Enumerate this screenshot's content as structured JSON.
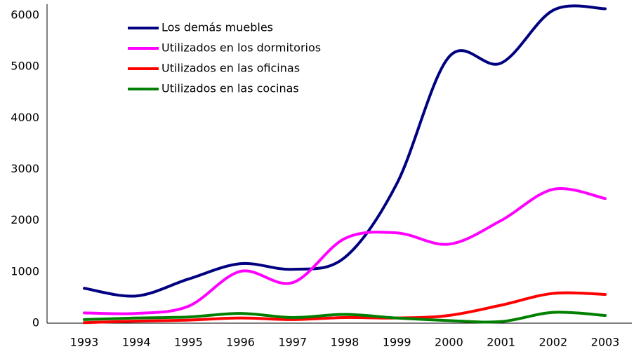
{
  "chart_data": {
    "type": "line",
    "categories": [
      "1993",
      "1994",
      "1995",
      "1996",
      "1997",
      "1998",
      "1999",
      "2000",
      "2001",
      "2002",
      "2003"
    ],
    "series": [
      {
        "name": "Los demás muebles",
        "color": "#000080",
        "values": [
          680,
          530,
          860,
          1160,
          1050,
          1280,
          2720,
          5190,
          5070,
          6100,
          6130
        ]
      },
      {
        "name": "Utilizados en los dormitorios",
        "color": "#ff00ff",
        "values": [
          200,
          190,
          330,
          1010,
          790,
          1650,
          1760,
          1540,
          2000,
          2610,
          2430
        ]
      },
      {
        "name": "Utilizados en las oficinas",
        "color": "#ff0000",
        "values": [
          10,
          40,
          60,
          100,
          70,
          110,
          100,
          150,
          350,
          580,
          560
        ]
      },
      {
        "name": "Utilizados en las cocinas",
        "color": "#008000",
        "values": [
          70,
          100,
          120,
          190,
          110,
          170,
          100,
          50,
          30,
          210,
          150
        ]
      }
    ],
    "ylim": [
      0,
      6000
    ],
    "yticks": [
      0,
      1000,
      2000,
      3000,
      4000,
      5000,
      6000
    ],
    "grid": false,
    "legend": "top-left"
  }
}
